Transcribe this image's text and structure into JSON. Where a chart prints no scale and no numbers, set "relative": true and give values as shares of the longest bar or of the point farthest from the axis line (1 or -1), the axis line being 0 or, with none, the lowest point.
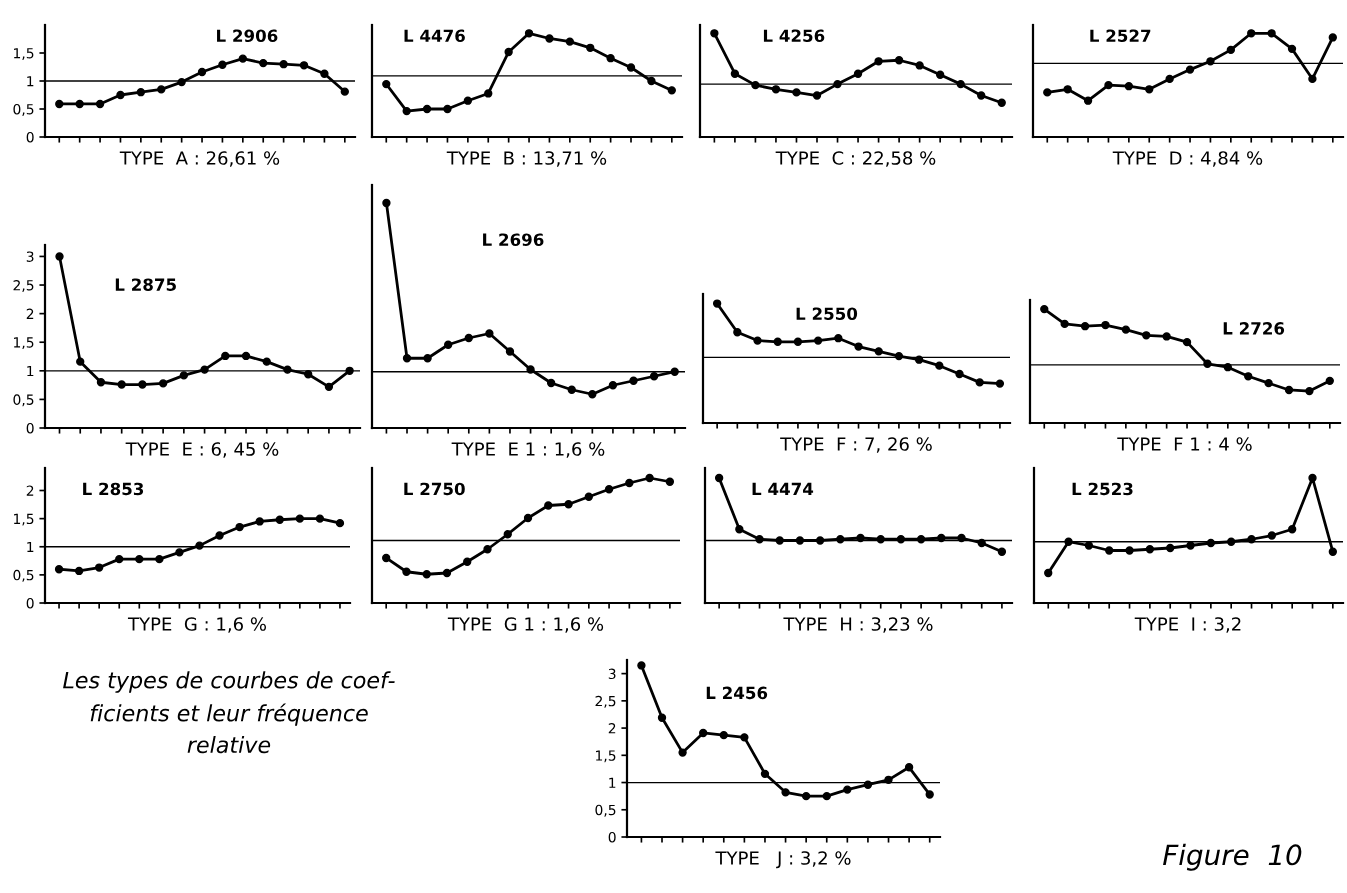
{
  "chart_data": [
    {
      "type": "line",
      "xlabel": "TYPE  A : 26,61 %",
      "annotations": [
        "L 2906"
      ],
      "categories": [
        null,
        null,
        null,
        null,
        null,
        null,
        null,
        null,
        null,
        null,
        null,
        null,
        null,
        null,
        null
      ],
      "series": [
        {
          "color": "#000000",
          "values": [
            0.59,
            0.59,
            0.59,
            0.75,
            0.8,
            0.85,
            0.98,
            1.16,
            1.29,
            1.4,
            1.32,
            1.3,
            1.28,
            1.13,
            0.81
          ]
        }
      ],
      "ylim": [
        0,
        2
      ],
      "yticks": [
        0,
        {
          "value": 0.5,
          "label": "0,5"
        },
        1,
        {
          "value": 1.5,
          "label": "1,5"
        }
      ],
      "tick_labels": "y",
      "ref_lines": [
        {
          "axis": "y",
          "value": 1
        }
      ],
      "marker": "circle",
      "line_style": "solid"
    },
    {
      "type": "line",
      "xlabel": "TYPE  B : 13,71 %",
      "annotations": [
        "L 4476"
      ],
      "categories": [
        null,
        null,
        null,
        null,
        null,
        null,
        null,
        null,
        null,
        null,
        null,
        null,
        null,
        null,
        null
      ],
      "relative": true,
      "series": [
        {
          "color": "#000000",
          "values": [
            0.51,
            0.25,
            0.27,
            0.27,
            0.35,
            0.42,
            0.82,
            1,
            0.95,
            0.92,
            0.86,
            0.76,
            0.67,
            0.54,
            0.45
          ]
        }
      ],
      "tick_labels": false,
      "ref_lines": [
        {
          "axis": "y",
          "value": 0.59
        }
      ],
      "marker": "circle",
      "line_style": "solid"
    },
    {
      "type": "line",
      "xlabel": "TYPE  C : 22,58 %",
      "annotations": [
        "L 4256"
      ],
      "categories": [
        null,
        null,
        null,
        null,
        null,
        null,
        null,
        null,
        null,
        null,
        null,
        null,
        null,
        null,
        null
      ],
      "relative": true,
      "series": [
        {
          "color": "#000000",
          "values": [
            1,
            0.61,
            0.5,
            0.46,
            0.43,
            0.4,
            0.51,
            0.61,
            0.73,
            0.74,
            0.69,
            0.6,
            0.51,
            0.4,
            0.33
          ]
        }
      ],
      "tick_labels": false,
      "ref_lines": [
        {
          "axis": "y",
          "value": 0.51
        }
      ],
      "marker": "circle",
      "line_style": "solid"
    },
    {
      "type": "line",
      "xlabel": "TYPE  D : 4,84 %",
      "annotations": [
        "L 2527"
      ],
      "categories": [
        null,
        null,
        null,
        null,
        null,
        null,
        null,
        null,
        null,
        null,
        null,
        null,
        null,
        null,
        null
      ],
      "relative": true,
      "series": [
        {
          "color": "#000000",
          "values": [
            0.43,
            0.46,
            0.35,
            0.5,
            0.49,
            0.46,
            0.56,
            0.65,
            0.73,
            0.84,
            1,
            1,
            0.85,
            0.56,
            0.96
          ]
        }
      ],
      "tick_labels": false,
      "ref_lines": [
        {
          "axis": "y",
          "value": 0.71
        }
      ],
      "marker": "circle",
      "line_style": "solid"
    },
    {
      "type": "line",
      "xlabel": "TYPE  E : 6, 45 %",
      "annotations": [
        "L 2875"
      ],
      "categories": [
        null,
        null,
        null,
        null,
        null,
        null,
        null,
        null,
        null,
        null,
        null,
        null,
        null,
        null,
        null
      ],
      "series": [
        {
          "color": "#000000",
          "values": [
            3.0,
            1.16,
            0.8,
            0.76,
            0.76,
            0.78,
            0.92,
            1.02,
            1.26,
            1.26,
            1.16,
            1.02,
            0.94,
            0.72,
            1.0
          ]
        }
      ],
      "ylim": [
        0,
        3.2
      ],
      "yticks": [
        0,
        {
          "value": 0.5,
          "label": "0,5"
        },
        1,
        {
          "value": 1.5,
          "label": "1,5"
        },
        2,
        {
          "value": 2.5,
          "label": "2,5"
        },
        3
      ],
      "tick_labels": "y",
      "ref_lines": [
        {
          "axis": "y",
          "value": 1
        }
      ],
      "marker": "circle",
      "line_style": "solid"
    },
    {
      "type": "line",
      "xlabel": "TYPE  E 1 : 1,6 %",
      "annotations": [
        "L 2696"
      ],
      "categories": [
        null,
        null,
        null,
        null,
        null,
        null,
        null,
        null,
        null,
        null,
        null,
        null,
        null,
        null,
        null
      ],
      "relative": true,
      "series": [
        {
          "color": "#000000",
          "values": [
            1,
            0.31,
            0.31,
            0.37,
            0.4,
            0.42,
            0.34,
            0.26,
            0.2,
            0.17,
            0.15,
            0.19,
            0.21,
            0.23,
            0.25
          ]
        }
      ],
      "tick_labels": false,
      "ref_lines": [
        {
          "axis": "y",
          "value": 0.25
        }
      ],
      "marker": "circle",
      "line_style": "solid"
    },
    {
      "type": "line",
      "xlabel": "TYPE  F : 7, 26 %",
      "annotations": [
        "L 2550"
      ],
      "categories": [
        null,
        null,
        null,
        null,
        null,
        null,
        null,
        null,
        null,
        null,
        null,
        null,
        null,
        null,
        null
      ],
      "relative": true,
      "series": [
        {
          "color": "#000000",
          "values": [
            1,
            0.76,
            0.69,
            0.68,
            0.68,
            0.69,
            0.71,
            0.64,
            0.6,
            0.56,
            0.53,
            0.48,
            0.41,
            0.34,
            0.33
          ]
        }
      ],
      "tick_labels": false,
      "ref_lines": [
        {
          "axis": "y",
          "value": 0.55
        }
      ],
      "marker": "circle",
      "line_style": "solid"
    },
    {
      "type": "line",
      "xlabel": "TYPE  F 1 : 4 %",
      "annotations": [
        "L 2726"
      ],
      "categories": [
        null,
        null,
        null,
        null,
        null,
        null,
        null,
        null,
        null,
        null,
        null,
        null,
        null,
        null,
        null
      ],
      "relative": true,
      "series": [
        {
          "color": "#000000",
          "values": [
            1,
            0.87,
            0.85,
            0.86,
            0.82,
            0.77,
            0.76,
            0.71,
            0.52,
            0.49,
            0.41,
            0.35,
            0.29,
            0.28,
            0.37
          ]
        }
      ],
      "tick_labels": false,
      "ref_lines": [
        {
          "axis": "y",
          "value": 0.51
        }
      ],
      "marker": "circle",
      "line_style": "solid"
    },
    {
      "type": "line",
      "xlabel": "TYPE  G : 1,6 %",
      "annotations": [
        "L 2853"
      ],
      "categories": [
        null,
        null,
        null,
        null,
        null,
        null,
        null,
        null,
        null,
        null,
        null,
        null,
        null,
        null,
        null
      ],
      "series": [
        {
          "color": "#000000",
          "values": [
            0.6,
            0.57,
            0.63,
            0.78,
            0.78,
            0.78,
            0.9,
            1.02,
            1.2,
            1.35,
            1.45,
            1.48,
            1.5,
            1.5,
            1.42
          ]
        }
      ],
      "ylim": [
        0,
        2.4
      ],
      "yticks": [
        0,
        {
          "value": 0.5,
          "label": "0,5"
        },
        1,
        {
          "value": 1.5,
          "label": "1,5"
        },
        2
      ],
      "tick_labels": "y",
      "ref_lines": [
        {
          "axis": "y",
          "value": 1
        }
      ],
      "marker": "circle",
      "line_style": "solid"
    },
    {
      "type": "line",
      "xlabel": "TYPE  G 1 : 1,6 %",
      "annotations": [
        "L 2750"
      ],
      "categories": [
        null,
        null,
        null,
        null,
        null,
        null,
        null,
        null,
        null,
        null,
        null,
        null,
        null,
        null,
        null
      ],
      "relative": true,
      "series": [
        {
          "color": "#000000",
          "values": [
            0.36,
            0.25,
            0.23,
            0.24,
            0.33,
            0.43,
            0.55,
            0.68,
            0.78,
            0.79,
            0.85,
            0.91,
            0.96,
            1,
            0.97
          ]
        }
      ],
      "tick_labels": false,
      "ref_lines": [
        {
          "axis": "y",
          "value": 0.5
        }
      ],
      "marker": "circle",
      "line_style": "solid"
    },
    {
      "type": "line",
      "xlabel": "TYPE  H : 3,23 %",
      "annotations": [
        "L 4474"
      ],
      "categories": [
        null,
        null,
        null,
        null,
        null,
        null,
        null,
        null,
        null,
        null,
        null,
        null,
        null,
        null,
        null
      ],
      "relative": true,
      "series": [
        {
          "color": "#000000",
          "values": [
            1,
            0.59,
            0.51,
            0.5,
            0.5,
            0.5,
            0.51,
            0.52,
            0.51,
            0.51,
            0.51,
            0.52,
            0.52,
            0.48,
            0.41
          ]
        }
      ],
      "tick_labels": false,
      "ref_lines": [
        {
          "axis": "y",
          "value": 0.5
        }
      ],
      "marker": "circle",
      "line_style": "solid"
    },
    {
      "type": "line",
      "xlabel": "TYPE  I : 3,2",
      "annotations": [
        "L 2523"
      ],
      "categories": [
        null,
        null,
        null,
        null,
        null,
        null,
        null,
        null,
        null,
        null,
        null,
        null,
        null,
        null,
        null
      ],
      "relative": true,
      "series": [
        {
          "color": "#000000",
          "values": [
            0.24,
            0.49,
            0.46,
            0.42,
            0.42,
            0.43,
            0.44,
            0.46,
            0.48,
            0.49,
            0.51,
            0.54,
            0.59,
            1,
            0.41
          ]
        }
      ],
      "tick_labels": false,
      "ref_lines": [
        {
          "axis": "y",
          "value": 0.49
        }
      ],
      "marker": "circle",
      "line_style": "solid"
    },
    {
      "type": "line",
      "xlabel": "TYPE   J : 3,2 %",
      "annotations": [
        "L 2456",
        "Les types de courbes de coef-\nficients et leur fréquence\nrelative",
        "Figure  10"
      ],
      "categories": [
        null,
        null,
        null,
        null,
        null,
        null,
        null,
        null,
        null,
        null,
        null,
        null,
        null,
        null,
        null
      ],
      "series": [
        {
          "color": "#000000",
          "values": [
            3.15,
            2.19,
            1.55,
            1.91,
            1.87,
            1.83,
            1.16,
            0.82,
            0.75,
            0.75,
            0.87,
            0.96,
            1.05,
            1.28,
            0.78
          ]
        }
      ],
      "ylim": [
        0,
        3.25
      ],
      "yticks": [
        0,
        {
          "value": 0.5,
          "label": "0,5"
        },
        1,
        {
          "value": 1.5,
          "label": "1,5"
        },
        2,
        {
          "value": 2.5,
          "label": "2,5"
        },
        3
      ],
      "tick_labels": "y",
      "ref_lines": [
        {
          "axis": "y",
          "value": 1
        }
      ],
      "marker": "circle",
      "line_style": "solid"
    }
  ]
}
